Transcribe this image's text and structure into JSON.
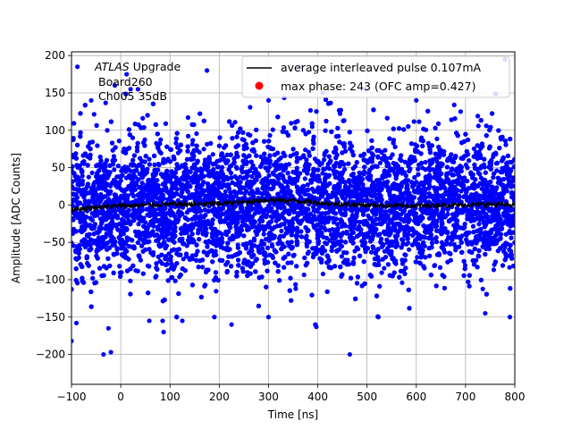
{
  "chart_data": {
    "type": "scatter",
    "xlabel": "Time [ns]",
    "ylabel": "Amplitude [ADC Counts]",
    "xlim": [
      -100,
      800
    ],
    "ylim": [
      -240,
      205
    ],
    "xticks": [
      -100,
      0,
      100,
      200,
      300,
      400,
      500,
      600,
      700,
      800
    ],
    "yticks": [
      -200,
      -150,
      -100,
      -50,
      0,
      50,
      100,
      150,
      200
    ],
    "grid": true,
    "annotation": {
      "line1_italic": "ATLAS",
      "line1_rest": " Upgrade",
      "line2": "Board260",
      "line3": "Ch005 35dB"
    },
    "legend": {
      "placement": "top-right",
      "entries": [
        {
          "label": "average interleaved pulse 0.107mA",
          "marker": "line",
          "color": "#000000"
        },
        {
          "label": "max phase: 243 (OFC amp=0.427)",
          "marker": "dot",
          "color": "#ff0000"
        }
      ]
    },
    "series": [
      {
        "kind": "scatter",
        "color": "#0000ff",
        "description_stats": {
          "mean": 0,
          "std": 45,
          "n": 9000
        },
        "outlier_points": [
          {
            "x": -100,
            "y": -182
          },
          {
            "x": -88,
            "y": 185
          },
          {
            "x": -90,
            "y": -158
          },
          {
            "x": -35,
            "y": -200
          },
          {
            "x": -25,
            "y": -165
          },
          {
            "x": -20,
            "y": -197
          },
          {
            "x": -12,
            "y": 160
          },
          {
            "x": 12,
            "y": 175
          },
          {
            "x": 20,
            "y": 155
          },
          {
            "x": 58,
            "y": -155
          },
          {
            "x": 85,
            "y": -155
          },
          {
            "x": 87,
            "y": -170
          },
          {
            "x": 125,
            "y": -155
          },
          {
            "x": 175,
            "y": 180
          },
          {
            "x": 190,
            "y": -150
          },
          {
            "x": 225,
            "y": -160
          },
          {
            "x": 300,
            "y": -150
          },
          {
            "x": 365,
            "y": 185
          },
          {
            "x": 395,
            "y": -160
          },
          {
            "x": 397,
            "y": -163
          },
          {
            "x": 465,
            "y": -200
          },
          {
            "x": 523,
            "y": -150
          },
          {
            "x": 740,
            "y": -145
          },
          {
            "x": 790,
            "y": -150
          },
          {
            "x": 780,
            "y": 195
          },
          {
            "x": 600,
            "y": 140
          },
          {
            "x": 498,
            "y": 155
          },
          {
            "x": 300,
            "y": 140
          },
          {
            "x": 690,
            "y": 125
          },
          {
            "x": 35,
            "y": 155
          },
          {
            "x": -60,
            "y": 140
          },
          {
            "x": 410,
            "y": 150
          }
        ]
      },
      {
        "kind": "line",
        "name": "average interleaved pulse 0.107mA",
        "color": "#000000",
        "x": [
          -100,
          -50,
          0,
          50,
          100,
          150,
          200,
          250,
          300,
          350,
          400,
          450,
          500,
          550,
          600,
          650,
          700,
          750,
          800
        ],
        "y": [
          -6,
          -3,
          -1,
          0,
          1,
          1,
          2,
          4,
          7,
          6,
          3,
          1,
          0,
          -1,
          -1,
          0,
          0,
          1,
          0
        ]
      }
    ]
  }
}
